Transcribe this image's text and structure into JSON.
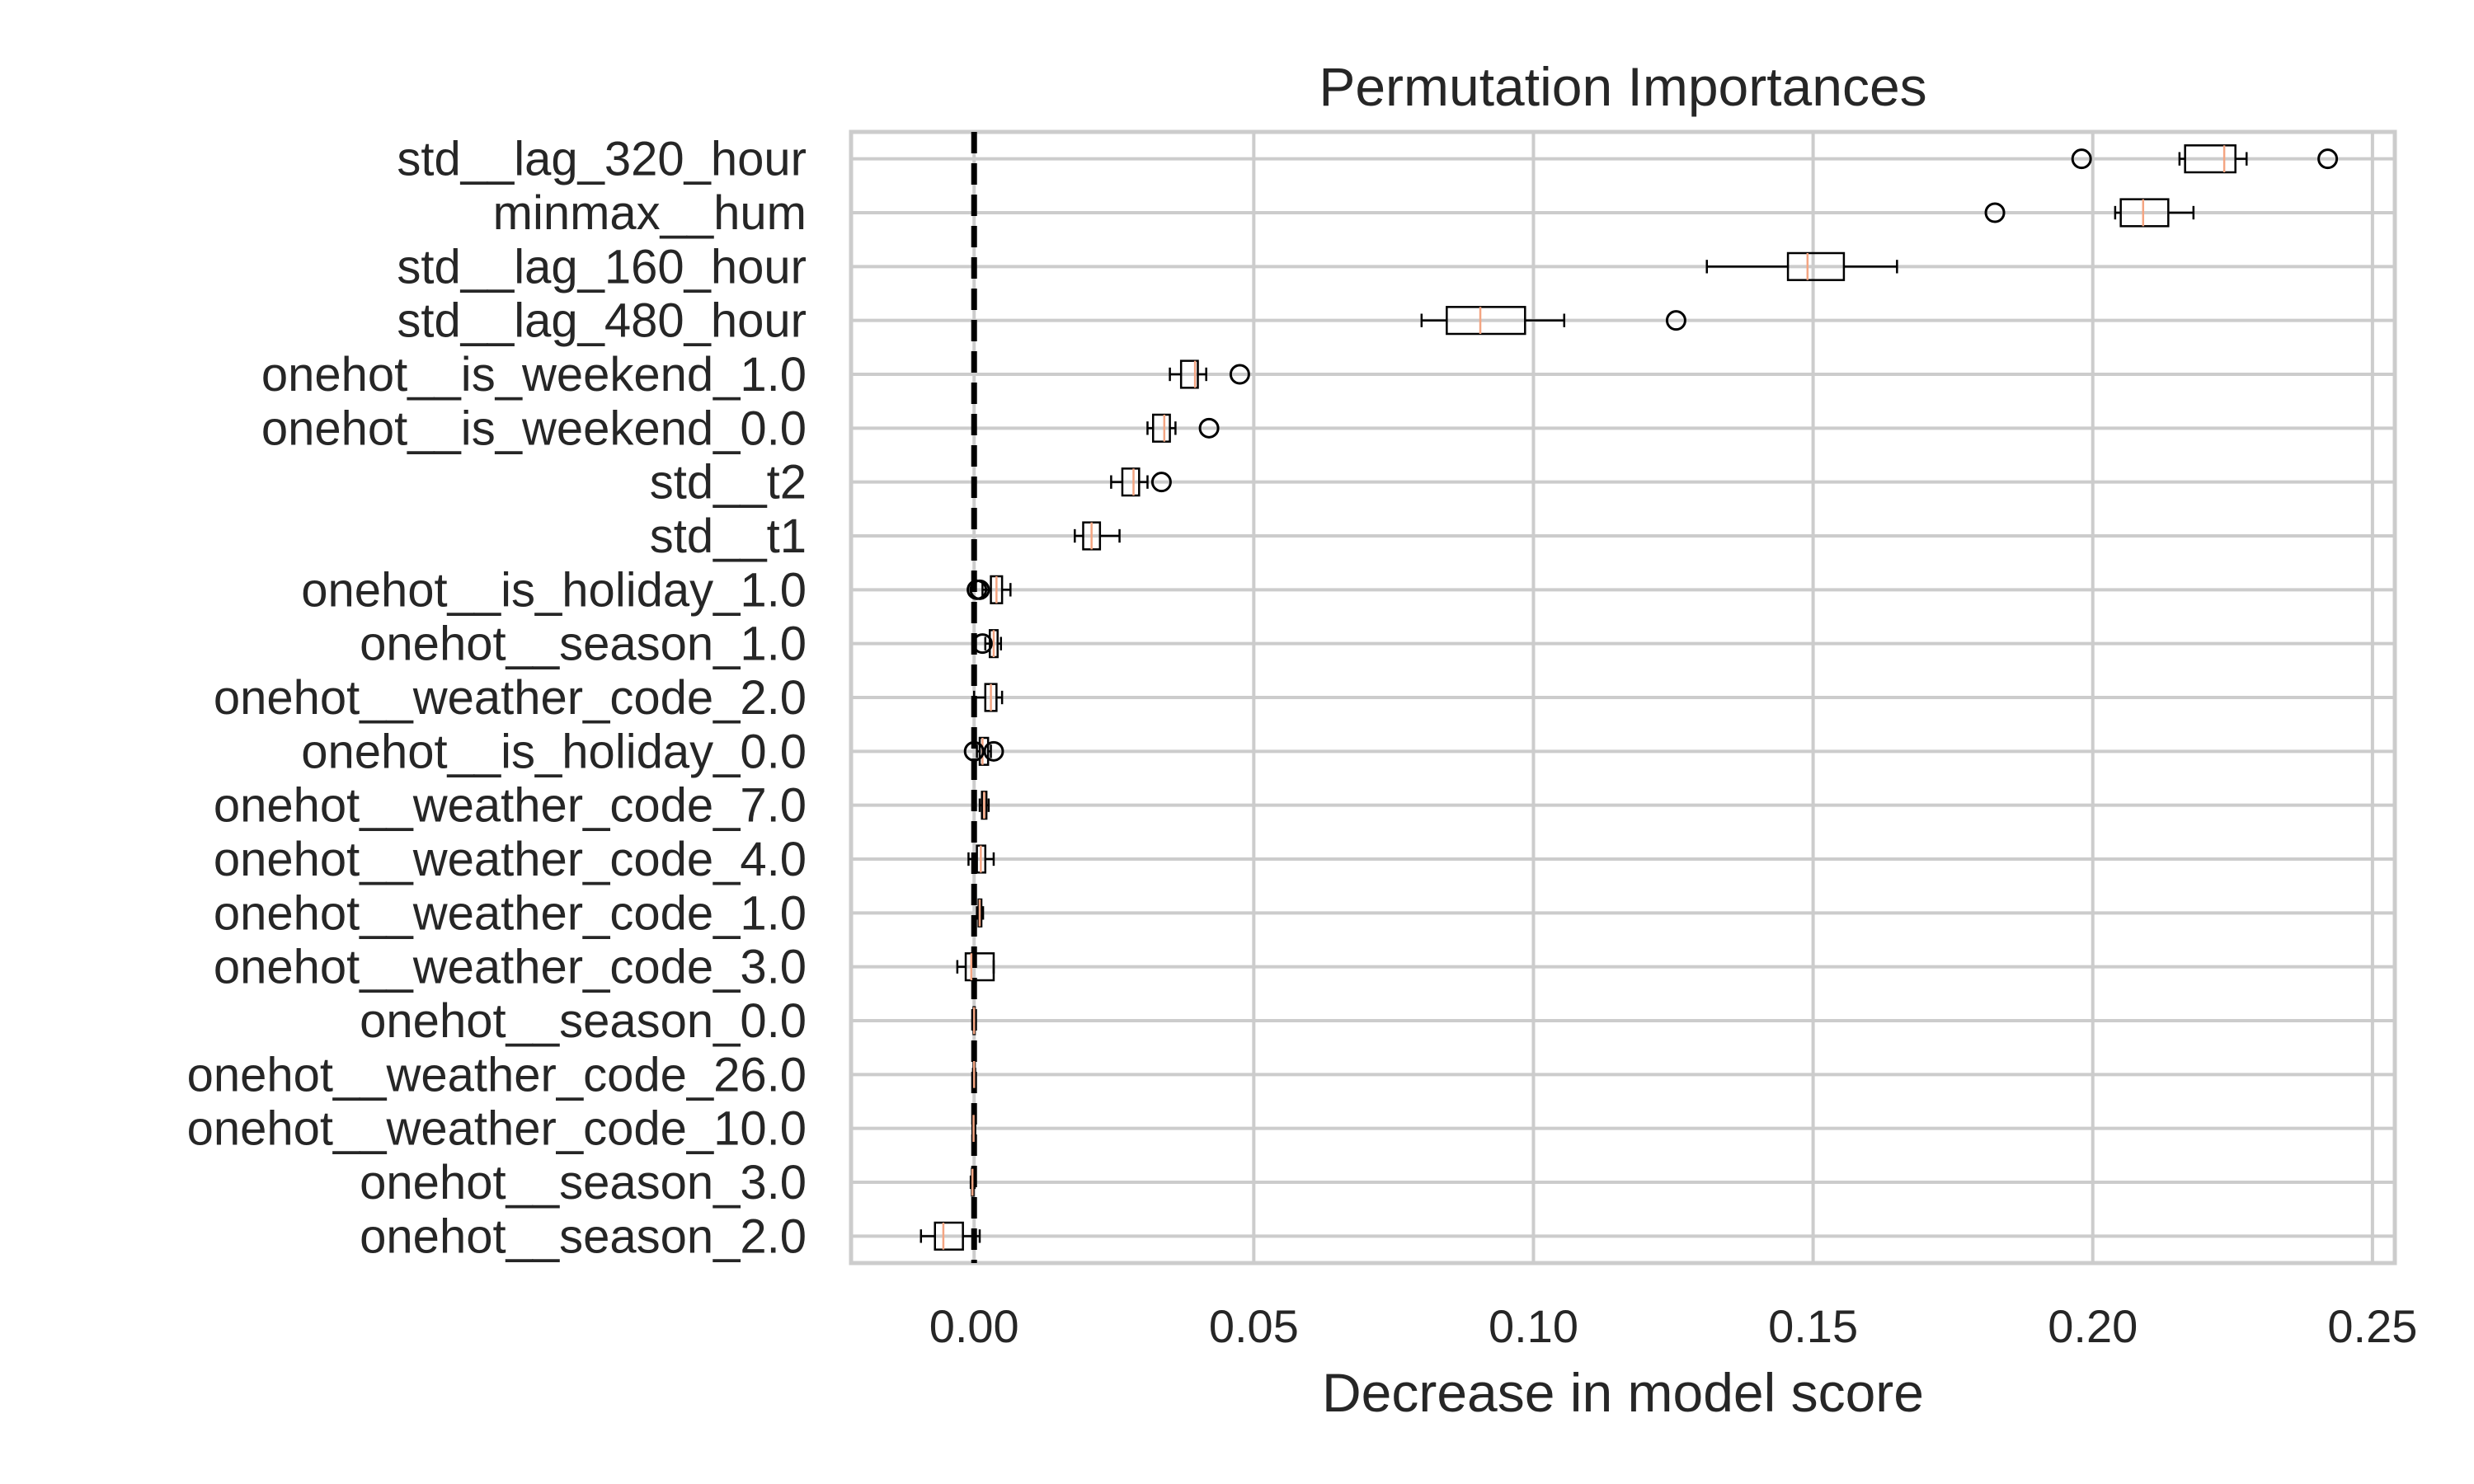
{
  "chart_data": {
    "type": "boxplot",
    "orientation": "horizontal",
    "title": "Permutation Importances",
    "xlabel": "Decrease in model score",
    "ylabel": "",
    "xlim": [
      -0.022,
      0.254
    ],
    "xticks": [
      {
        "value": 0.0,
        "label": "0.00"
      },
      {
        "value": 0.05,
        "label": "0.05"
      },
      {
        "value": 0.1,
        "label": "0.10"
      },
      {
        "value": 0.15,
        "label": "0.15"
      },
      {
        "value": 0.2,
        "label": "0.20"
      },
      {
        "value": 0.25,
        "label": "0.25"
      }
    ],
    "grid": true,
    "reference_line": {
      "x": 0.0,
      "style": "dashed",
      "color": "#000000"
    },
    "box_color": "#000000",
    "median_color": "#f4a582",
    "categories": [
      {
        "label": "std__lag_320_hour",
        "whisker_low": 0.2155,
        "q1": 0.2165,
        "median": 0.2235,
        "q3": 0.2255,
        "whisker_high": 0.2275,
        "outliers": [
          0.198,
          0.242
        ]
      },
      {
        "label": "minmax__hum",
        "whisker_low": 0.204,
        "q1": 0.205,
        "median": 0.209,
        "q3": 0.2135,
        "whisker_high": 0.218,
        "outliers": [
          0.1825
        ]
      },
      {
        "label": "std__lag_160_hour",
        "whisker_low": 0.131,
        "q1": 0.1455,
        "median": 0.149,
        "q3": 0.1555,
        "whisker_high": 0.165,
        "outliers": []
      },
      {
        "label": "std__lag_480_hour",
        "whisker_low": 0.08,
        "q1": 0.0845,
        "median": 0.0905,
        "q3": 0.0985,
        "whisker_high": 0.1055,
        "outliers": [
          0.1255
        ]
      },
      {
        "label": "onehot__is_weekend_1.0",
        "whisker_low": 0.035,
        "q1": 0.037,
        "median": 0.0395,
        "q3": 0.04,
        "whisker_high": 0.0415,
        "outliers": [
          0.0475
        ]
      },
      {
        "label": "onehot__is_weekend_0.0",
        "whisker_low": 0.031,
        "q1": 0.032,
        "median": 0.034,
        "q3": 0.035,
        "whisker_high": 0.036,
        "outliers": [
          0.042
        ]
      },
      {
        "label": "std__t2",
        "whisker_low": 0.0245,
        "q1": 0.0265,
        "median": 0.0285,
        "q3": 0.0295,
        "whisker_high": 0.031,
        "outliers": [
          0.0335
        ]
      },
      {
        "label": "std__t1",
        "whisker_low": 0.018,
        "q1": 0.0195,
        "median": 0.021,
        "q3": 0.0225,
        "whisker_high": 0.026,
        "outliers": []
      },
      {
        "label": "onehot__is_holiday_1.0",
        "whisker_low": 0.0015,
        "q1": 0.003,
        "median": 0.004,
        "q3": 0.005,
        "whisker_high": 0.0065,
        "outliers": [
          0.0005,
          0.001
        ]
      },
      {
        "label": "onehot__season_1.0",
        "whisker_low": 0.002,
        "q1": 0.0028,
        "median": 0.0035,
        "q3": 0.0042,
        "whisker_high": 0.0048,
        "outliers": [
          0.0015
        ]
      },
      {
        "label": "onehot__weather_code_2.0",
        "whisker_low": 0.0,
        "q1": 0.002,
        "median": 0.003,
        "q3": 0.004,
        "whisker_high": 0.005,
        "outliers": []
      },
      {
        "label": "onehot__is_holiday_0.0",
        "whisker_low": 0.0005,
        "q1": 0.001,
        "median": 0.0015,
        "q3": 0.0025,
        "whisker_high": 0.003,
        "outliers": [
          0.0,
          0.0035
        ]
      },
      {
        "label": "onehot__weather_code_7.0",
        "whisker_low": 0.001,
        "q1": 0.0014,
        "median": 0.0018,
        "q3": 0.0022,
        "whisker_high": 0.0026,
        "outliers": []
      },
      {
        "label": "onehot__weather_code_4.0",
        "whisker_low": -0.001,
        "q1": 0.0005,
        "median": 0.0012,
        "q3": 0.002,
        "whisker_high": 0.0035,
        "outliers": []
      },
      {
        "label": "onehot__weather_code_1.0",
        "whisker_low": 0.0005,
        "q1": 0.0008,
        "median": 0.001,
        "q3": 0.0013,
        "whisker_high": 0.0016,
        "outliers": []
      },
      {
        "label": "onehot__weather_code_3.0",
        "whisker_low": -0.003,
        "q1": -0.0015,
        "median": -0.0005,
        "q3": 0.0035,
        "whisker_high": 0.0035,
        "outliers": []
      },
      {
        "label": "onehot__season_0.0",
        "whisker_low": -0.0002,
        "q1": -0.0001,
        "median": 0.0,
        "q3": 0.0001,
        "whisker_high": 0.0002,
        "outliers": []
      },
      {
        "label": "onehot__weather_code_26.0",
        "whisker_low": -0.0002,
        "q1": -0.0001,
        "median": 0.0,
        "q3": 0.0001,
        "whisker_high": 0.0002,
        "outliers": []
      },
      {
        "label": "onehot__weather_code_10.0",
        "whisker_low": -0.0003,
        "q1": -0.0002,
        "median": -0.0001,
        "q3": 0.0001,
        "whisker_high": 0.0002,
        "outliers": []
      },
      {
        "label": "onehot__season_3.0",
        "whisker_low": -0.0006,
        "q1": -0.0004,
        "median": -0.0003,
        "q3": -0.0001,
        "whisker_high": 0.0001,
        "outliers": []
      },
      {
        "label": "onehot__season_2.0",
        "whisker_low": -0.0095,
        "q1": -0.007,
        "median": -0.0055,
        "q3": -0.002,
        "whisker_high": 0.001,
        "outliers": []
      }
    ]
  }
}
